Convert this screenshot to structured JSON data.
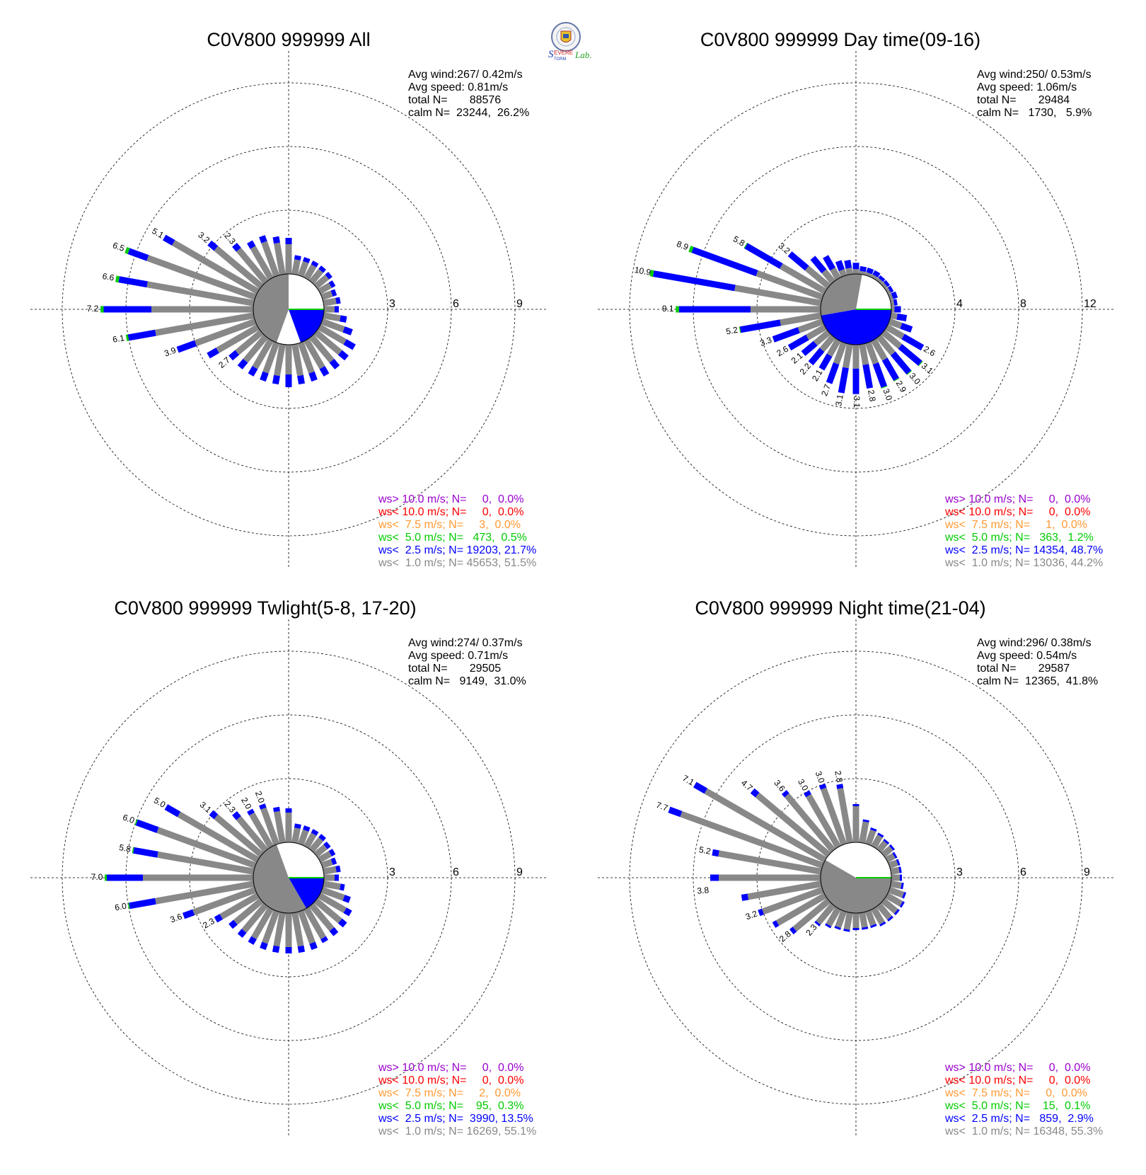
{
  "colors": {
    "ws_gt10": "#9900cc",
    "ws_lt10": "#ff0000",
    "ws_lt75": "#ff9933",
    "ws_lt5": "#00cc00",
    "ws_lt25": "#0000ff",
    "ws_lt1": "#888888"
  },
  "logo": {
    "text": "Severe Storm Lab."
  },
  "chart_data": [
    {
      "type": "wind-rose",
      "title": "C0V800 999999 All",
      "stats": {
        "avg_wind": "Avg wind:267/ 0.42m/s",
        "avg_speed": "Avg speed: 0.81m/s",
        "total": "total N=       88576",
        "calm": "calm N=  23244,  26.2%"
      },
      "legend": [
        {
          "text": "ws> 10.0 m/s; N=     0,  0.0%",
          "color": "#9900cc"
        },
        {
          "text": "ws< 10.0 m/s; N=     0,  0.0%",
          "color": "#ff0000"
        },
        {
          "text": "ws<  7.5 m/s; N=     3,  0.0%",
          "color": "#ff9933"
        },
        {
          "text": "ws<  5.0 m/s; N=   473,  0.5%",
          "color": "#00cc00"
        },
        {
          "text": "ws<  2.5 m/s; N= 19203, 21.7%",
          "color": "#0000ff"
        },
        {
          "text": "ws<  1.0 m/s; N= 45653, 51.5%",
          "color": "#888888"
        }
      ],
      "rings": [
        3,
        6,
        9
      ],
      "rmax": 10.5,
      "calm_split": {
        "gray_start_deg": 200,
        "gray_end_deg": 360,
        "blue_start_deg": 90,
        "blue_end_deg": 160,
        "green_deg": 90
      },
      "directions_deg": [
        0,
        10,
        20,
        30,
        40,
        50,
        60,
        70,
        80,
        90,
        100,
        110,
        120,
        130,
        140,
        150,
        160,
        170,
        180,
        190,
        200,
        210,
        220,
        230,
        240,
        250,
        260,
        270,
        280,
        290,
        300,
        310,
        320,
        330,
        340,
        350
      ],
      "totals": [
        1.7,
        0.9,
        0.9,
        0.9,
        0.9,
        0.9,
        0.8,
        0.7,
        0.8,
        0.7,
        1.1,
        1.5,
        1.9,
        1.9,
        1.9,
        1.9,
        1.9,
        1.9,
        2.0,
        1.9,
        1.9,
        1.9,
        1.9,
        1.9,
        2.7,
        3.9,
        6.1,
        7.2,
        6.6,
        6.5,
        5.1,
        3.2,
        2.3,
        2.0,
        2.0,
        1.8
      ],
      "lt1": [
        1.4,
        0.7,
        0.7,
        0.7,
        0.7,
        0.7,
        0.6,
        0.5,
        0.6,
        0.5,
        0.8,
        1.1,
        1.4,
        1.5,
        1.5,
        1.5,
        1.5,
        1.5,
        1.4,
        1.5,
        1.5,
        1.5,
        1.5,
        1.5,
        2.2,
        3.0,
        4.7,
        4.8,
        5.1,
        5.4,
        4.6,
        2.8,
        2.0,
        1.7,
        1.7,
        1.5
      ],
      "lt5": [
        0,
        0,
        0,
        0,
        0,
        0,
        0,
        0,
        0,
        0,
        0,
        0,
        0,
        0,
        0,
        0,
        0,
        0,
        0,
        0,
        0,
        0,
        0,
        0,
        0,
        0,
        0.1,
        0.15,
        0.15,
        0.15,
        0,
        0,
        0,
        0,
        0,
        0
      ],
      "bar_labels": [
        {
          "dir": 230,
          "text": "2.7"
        },
        {
          "dir": 250,
          "text": "3.9"
        },
        {
          "dir": 260,
          "text": "6.1"
        },
        {
          "dir": 270,
          "text": "7.2"
        },
        {
          "dir": 280,
          "text": "6.6"
        },
        {
          "dir": 290,
          "text": "6.5"
        },
        {
          "dir": 300,
          "text": "5.1"
        },
        {
          "dir": 310,
          "text": "3.2"
        },
        {
          "dir": 320,
          "text": "2.3"
        }
      ]
    },
    {
      "type": "wind-rose",
      "title": "C0V800 999999 Day time(09-16)",
      "stats": {
        "avg_wind": "Avg wind:250/ 0.53m/s",
        "avg_speed": "Avg speed: 1.06m/s",
        "total": "total N=       29484",
        "calm": "calm N=   1730,   5.9%"
      },
      "legend": [
        {
          "text": "ws> 10.0 m/s; N=     0,  0.0%",
          "color": "#9900cc"
        },
        {
          "text": "ws< 10.0 m/s; N=     0,  0.0%",
          "color": "#ff0000"
        },
        {
          "text": "ws<  7.5 m/s; N=     1,  0.0%",
          "color": "#ff9933"
        },
        {
          "text": "ws<  5.0 m/s; N=   363,  1.2%",
          "color": "#00cc00"
        },
        {
          "text": "ws<  2.5 m/s; N= 14354, 48.7%",
          "color": "#0000ff"
        },
        {
          "text": "ws<  1.0 m/s; N= 13036, 44.2%",
          "color": "#888888"
        }
      ],
      "rings": [
        4,
        8,
        12
      ],
      "rmax": 14,
      "calm_split": {
        "gray_start_deg": 260,
        "gray_end_deg": 370,
        "blue_start_deg": 90,
        "blue_end_deg": 260,
        "green_deg": 90
      },
      "directions_deg": [
        0,
        10,
        20,
        30,
        40,
        50,
        60,
        70,
        80,
        90,
        100,
        110,
        120,
        130,
        140,
        150,
        160,
        170,
        180,
        190,
        200,
        210,
        220,
        230,
        240,
        250,
        260,
        270,
        280,
        290,
        300,
        310,
        320,
        330,
        340,
        350
      ],
      "totals": [
        0.7,
        0.5,
        0.5,
        0.5,
        0.4,
        0.4,
        0.4,
        0.5,
        0.4,
        0.6,
        1.0,
        1.5,
        2.6,
        3.1,
        3.0,
        2.9,
        3.0,
        2.8,
        3.1,
        3.1,
        2.7,
        2.1,
        2.2,
        2.1,
        2.6,
        3.3,
        5.2,
        9.1,
        10.9,
        8.9,
        5.8,
        3.2,
        2.0,
        1.6,
        1.0,
        0.9
      ],
      "lt1": [
        0.3,
        0.2,
        0.2,
        0.2,
        0.2,
        0.2,
        0.2,
        0.2,
        0.2,
        0.2,
        0.4,
        0.8,
        1.2,
        1.4,
        1.4,
        1.4,
        1.4,
        1.3,
        1.5,
        1.5,
        1.4,
        1.1,
        1.1,
        1.1,
        1.3,
        1.6,
        2.6,
        4.4,
        5.5,
        4.4,
        3.2,
        1.8,
        0.9,
        0.7,
        0.4,
        0.4
      ],
      "lt5": [
        0,
        0,
        0,
        0,
        0,
        0,
        0,
        0,
        0,
        0,
        0,
        0,
        0,
        0.05,
        0.05,
        0.05,
        0.05,
        0,
        0,
        0,
        0,
        0,
        0,
        0,
        0,
        0,
        0.05,
        0.2,
        0.2,
        0.2,
        0.05,
        0,
        0,
        0,
        0,
        0
      ],
      "bar_labels": [
        {
          "dir": 120,
          "text": "2.6"
        },
        {
          "dir": 130,
          "text": "3.1"
        },
        {
          "dir": 140,
          "text": "3.0"
        },
        {
          "dir": 150,
          "text": "2.9"
        },
        {
          "dir": 160,
          "text": "3.0"
        },
        {
          "dir": 170,
          "text": "2.8"
        },
        {
          "dir": 180,
          "text": "3.1"
        },
        {
          "dir": 190,
          "text": "3.1"
        },
        {
          "dir": 200,
          "text": "2.7"
        },
        {
          "dir": 210,
          "text": "2.1"
        },
        {
          "dir": 220,
          "text": "2.2"
        },
        {
          "dir": 230,
          "text": "2.1"
        },
        {
          "dir": 240,
          "text": "2.6"
        },
        {
          "dir": 250,
          "text": "3.3"
        },
        {
          "dir": 260,
          "text": "5.2"
        },
        {
          "dir": 270,
          "text": "9.1"
        },
        {
          "dir": 280,
          "text": "10.9"
        },
        {
          "dir": 290,
          "text": "8.9"
        },
        {
          "dir": 300,
          "text": "5.8"
        },
        {
          "dir": 310,
          "text": "3.2"
        }
      ]
    },
    {
      "type": "wind-rose",
      "title": "C0V800 999999 Twlight(5-8, 17-20)",
      "stats": {
        "avg_wind": "Avg wind:274/ 0.37m/s",
        "avg_speed": "Avg speed: 0.71m/s",
        "total": "total N=       29505",
        "calm": "calm N=   9149,  31.0%"
      },
      "legend": [
        {
          "text": "ws> 10.0 m/s; N=     0,  0.0%",
          "color": "#9900cc"
        },
        {
          "text": "ws< 10.0 m/s; N=     0,  0.0%",
          "color": "#ff0000"
        },
        {
          "text": "ws<  7.5 m/s; N=     2,  0.0%",
          "color": "#ff9933"
        },
        {
          "text": "ws<  5.0 m/s; N=    95,  0.3%",
          "color": "#00cc00"
        },
        {
          "text": "ws<  2.5 m/s; N=  3990, 13.5%",
          "color": "#0000ff"
        },
        {
          "text": "ws<  1.0 m/s; N= 16269, 55.1%",
          "color": "#888888"
        }
      ],
      "rings": [
        3,
        6,
        9
      ],
      "rmax": 10.5,
      "calm_split": {
        "gray_start_deg": 150,
        "gray_end_deg": 340,
        "blue_start_deg": 90,
        "blue_end_deg": 150,
        "green_deg": 90
      },
      "directions_deg": [
        0,
        10,
        20,
        30,
        40,
        50,
        60,
        70,
        80,
        90,
        100,
        110,
        120,
        130,
        140,
        150,
        160,
        170,
        180,
        190,
        200,
        210,
        220,
        230,
        240,
        250,
        260,
        270,
        280,
        290,
        300,
        310,
        320,
        330,
        340,
        350
      ],
      "totals": [
        1.6,
        0.9,
        0.9,
        0.9,
        0.9,
        0.8,
        0.8,
        0.7,
        0.8,
        0.7,
        1.0,
        1.4,
        1.7,
        1.8,
        1.8,
        1.8,
        1.9,
        1.9,
        1.9,
        1.9,
        1.9,
        1.9,
        1.9,
        1.9,
        2.3,
        3.6,
        6.0,
        7.0,
        5.8,
        6.0,
        5.0,
        3.1,
        2.3,
        2.0,
        2.0,
        1.7
      ],
      "lt1": [
        1.4,
        0.7,
        0.7,
        0.7,
        0.7,
        0.6,
        0.6,
        0.5,
        0.6,
        0.5,
        0.8,
        1.1,
        1.4,
        1.5,
        1.5,
        1.6,
        1.6,
        1.6,
        1.6,
        1.6,
        1.6,
        1.6,
        1.6,
        1.6,
        2.0,
        3.1,
        4.7,
        5.2,
        4.6,
        4.9,
        4.3,
        2.8,
        2.0,
        1.8,
        1.8,
        1.5
      ],
      "lt5": [
        0,
        0,
        0,
        0,
        0,
        0,
        0,
        0,
        0,
        0,
        0,
        0,
        0,
        0,
        0,
        0,
        0,
        0,
        0,
        0,
        0,
        0,
        0,
        0,
        0,
        0,
        0.05,
        0.1,
        0.05,
        0.05,
        0,
        0,
        0,
        0,
        0,
        0
      ],
      "bar_labels": [
        {
          "dir": 240,
          "text": "2.3"
        },
        {
          "dir": 250,
          "text": "3.6"
        },
        {
          "dir": 260,
          "text": "6.0"
        },
        {
          "dir": 270,
          "text": "7.0"
        },
        {
          "dir": 280,
          "text": "5.8"
        },
        {
          "dir": 290,
          "text": "6.0"
        },
        {
          "dir": 300,
          "text": "5.0"
        },
        {
          "dir": 310,
          "text": "3.1"
        },
        {
          "dir": 320,
          "text": "2.3"
        },
        {
          "dir": 330,
          "text": "2.0"
        },
        {
          "dir": 340,
          "text": "2.0"
        }
      ]
    },
    {
      "type": "wind-rose",
      "title": "C0V800 999999 Night time(21-04)",
      "stats": {
        "avg_wind": "Avg wind:296/ 0.38m/s",
        "avg_speed": "Avg speed: 0.54m/s",
        "total": "total N=       29587",
        "calm": "calm N=  12365,  41.8%"
      },
      "legend": [
        {
          "text": "ws> 10.0 m/s; N=     0,  0.0%",
          "color": "#9900cc"
        },
        {
          "text": "ws< 10.0 m/s; N=     0,  0.0%",
          "color": "#ff0000"
        },
        {
          "text": "ws<  7.5 m/s; N=     0,  0.0%",
          "color": "#ff9933"
        },
        {
          "text": "ws<  5.0 m/s; N=    15,  0.1%",
          "color": "#00cc00"
        },
        {
          "text": "ws<  2.5 m/s; N=   859,  2.9%",
          "color": "#0000ff"
        },
        {
          "text": "ws<  1.0 m/s; N= 16348, 55.3%",
          "color": "#888888"
        }
      ],
      "rings": [
        3,
        6,
        9
      ],
      "rmax": 10.5,
      "calm_split": {
        "gray_start_deg": 90,
        "gray_end_deg": 300,
        "blue_start_deg": 90,
        "blue_end_deg": 90,
        "green_deg": 90
      },
      "directions_deg": [
        0,
        10,
        20,
        30,
        40,
        50,
        60,
        70,
        80,
        90,
        100,
        110,
        120,
        130,
        140,
        150,
        160,
        170,
        180,
        190,
        200,
        210,
        220,
        230,
        240,
        250,
        260,
        270,
        280,
        290,
        300,
        310,
        320,
        330,
        340,
        350
      ],
      "totals": [
        1.8,
        1.1,
        0.8,
        0.7,
        0.6,
        0.6,
        0.5,
        0.5,
        0.5,
        0.5,
        0.6,
        0.8,
        0.9,
        0.9,
        0.9,
        0.9,
        0.8,
        0.8,
        0.8,
        0.9,
        0.9,
        1.0,
        1.2,
        2.3,
        2.8,
        3.2,
        3.8,
        5.2,
        5.2,
        7.7,
        7.1,
        4.7,
        3.6,
        3.0,
        3.0,
        2.8
      ],
      "lt1": [
        1.7,
        1.0,
        0.7,
        0.6,
        0.5,
        0.5,
        0.4,
        0.4,
        0.4,
        0.4,
        0.5,
        0.7,
        0.8,
        0.8,
        0.8,
        0.8,
        0.7,
        0.7,
        0.7,
        0.8,
        0.8,
        0.9,
        1.1,
        2.1,
        2.6,
        3.0,
        3.5,
        4.8,
        4.9,
        7.1,
        6.5,
        4.4,
        3.4,
        2.8,
        2.8,
        2.6
      ],
      "lt5": [
        0,
        0,
        0,
        0,
        0,
        0,
        0,
        0,
        0,
        0,
        0,
        0,
        0,
        0,
        0,
        0,
        0,
        0,
        0,
        0,
        0,
        0,
        0,
        0,
        0,
        0,
        0,
        0,
        0,
        0,
        0,
        0,
        0,
        0,
        0,
        0
      ],
      "bar_labels": [
        {
          "dir": 220,
          "text": "2.3"
        },
        {
          "dir": 230,
          "text": "2.8"
        },
        {
          "dir": 250,
          "text": "3.2"
        },
        {
          "dir": 265,
          "text": "3.8"
        },
        {
          "dir": 280,
          "text": "5.2"
        },
        {
          "dir": 290,
          "text": "7.7"
        },
        {
          "dir": 300,
          "text": "7.1"
        },
        {
          "dir": 310,
          "text": "4.7"
        },
        {
          "dir": 320,
          "text": "3.6"
        },
        {
          "dir": 330,
          "text": "3.0"
        },
        {
          "dir": 340,
          "text": "3.0"
        },
        {
          "dir": 350,
          "text": "2.8"
        }
      ]
    }
  ]
}
